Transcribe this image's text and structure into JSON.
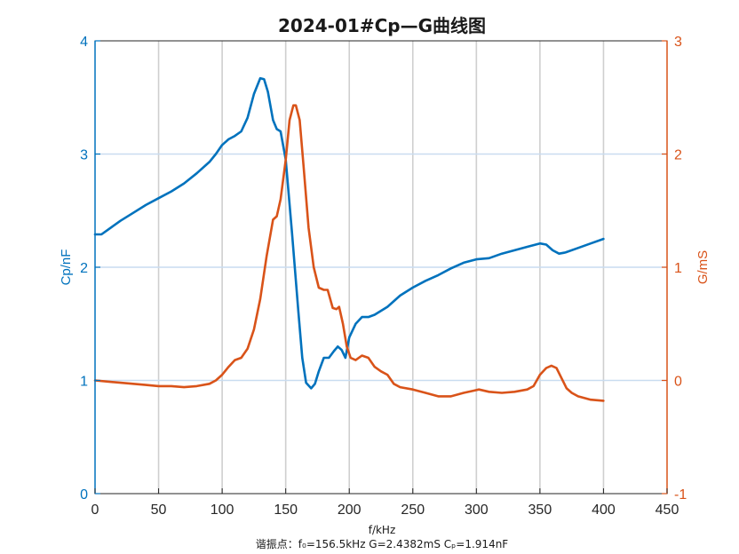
{
  "colors": {
    "left": "#0072BD",
    "right": "#D95319",
    "grid": "#c8c8c8",
    "axis": "#262626"
  },
  "chart_data": {
    "type": "line",
    "title": "2024-01#Cp—G曲线图",
    "xlabel": "f/kHz",
    "ylabel_left": "Cp/nF",
    "ylabel_right": "G/mS",
    "xlim": [
      0,
      450
    ],
    "ylim_left": [
      0,
      4
    ],
    "ylim_right": [
      -1,
      3
    ],
    "xticks": [
      0,
      50,
      100,
      150,
      200,
      250,
      300,
      350,
      400,
      450
    ],
    "yticks_left": [
      0,
      1,
      2,
      3,
      4
    ],
    "yticks_right": [
      -1,
      0,
      1,
      2,
      3
    ],
    "grid": true,
    "series": [
      {
        "axis": "left",
        "points": [
          [
            0,
            2.29
          ],
          [
            5,
            2.29
          ],
          [
            10,
            2.33
          ],
          [
            20,
            2.41
          ],
          [
            30,
            2.48
          ],
          [
            40,
            2.55
          ],
          [
            50,
            2.61
          ],
          [
            60,
            2.67
          ],
          [
            70,
            2.74
          ],
          [
            80,
            2.83
          ],
          [
            90,
            2.93
          ],
          [
            95,
            3.0
          ],
          [
            100,
            3.08
          ],
          [
            105,
            3.13
          ],
          [
            110,
            3.16
          ],
          [
            115,
            3.2
          ],
          [
            120,
            3.32
          ],
          [
            125,
            3.53
          ],
          [
            130,
            3.67
          ],
          [
            133,
            3.66
          ],
          [
            136,
            3.55
          ],
          [
            140,
            3.3
          ],
          [
            143,
            3.22
          ],
          [
            146,
            3.2
          ],
          [
            150,
            2.95
          ],
          [
            155,
            2.3
          ],
          [
            160,
            1.6
          ],
          [
            163,
            1.2
          ],
          [
            166,
            0.98
          ],
          [
            170,
            0.93
          ],
          [
            173,
            0.97
          ],
          [
            176,
            1.08
          ],
          [
            180,
            1.2
          ],
          [
            184,
            1.2
          ],
          [
            188,
            1.26
          ],
          [
            191,
            1.3
          ],
          [
            194,
            1.27
          ],
          [
            197,
            1.2
          ],
          [
            200,
            1.38
          ],
          [
            205,
            1.5
          ],
          [
            210,
            1.56
          ],
          [
            215,
            1.56
          ],
          [
            220,
            1.58
          ],
          [
            230,
            1.65
          ],
          [
            240,
            1.75
          ],
          [
            250,
            1.82
          ],
          [
            260,
            1.88
          ],
          [
            270,
            1.93
          ],
          [
            280,
            1.99
          ],
          [
            290,
            2.04
          ],
          [
            300,
            2.07
          ],
          [
            310,
            2.08
          ],
          [
            320,
            2.12
          ],
          [
            330,
            2.15
          ],
          [
            340,
            2.18
          ],
          [
            350,
            2.21
          ],
          [
            355,
            2.2
          ],
          [
            360,
            2.15
          ],
          [
            365,
            2.12
          ],
          [
            370,
            2.13
          ],
          [
            380,
            2.17
          ],
          [
            390,
            2.21
          ],
          [
            400,
            2.25
          ]
        ]
      },
      {
        "axis": "right",
        "points": [
          [
            0,
            0.0
          ],
          [
            10,
            -0.01
          ],
          [
            20,
            -0.02
          ],
          [
            30,
            -0.03
          ],
          [
            40,
            -0.04
          ],
          [
            50,
            -0.05
          ],
          [
            60,
            -0.05
          ],
          [
            70,
            -0.06
          ],
          [
            80,
            -0.05
          ],
          [
            90,
            -0.03
          ],
          [
            95,
            0.0
          ],
          [
            100,
            0.05
          ],
          [
            105,
            0.12
          ],
          [
            110,
            0.18
          ],
          [
            115,
            0.2
          ],
          [
            120,
            0.28
          ],
          [
            125,
            0.45
          ],
          [
            130,
            0.72
          ],
          [
            135,
            1.1
          ],
          [
            140,
            1.42
          ],
          [
            143,
            1.45
          ],
          [
            146,
            1.6
          ],
          [
            150,
            1.95
          ],
          [
            153,
            2.3
          ],
          [
            156,
            2.43
          ],
          [
            158,
            2.43
          ],
          [
            161,
            2.3
          ],
          [
            164,
            1.9
          ],
          [
            168,
            1.35
          ],
          [
            172,
            1.0
          ],
          [
            176,
            0.82
          ],
          [
            180,
            0.8
          ],
          [
            183,
            0.8
          ],
          [
            187,
            0.64
          ],
          [
            190,
            0.63
          ],
          [
            192,
            0.65
          ],
          [
            195,
            0.5
          ],
          [
            198,
            0.3
          ],
          [
            201,
            0.2
          ],
          [
            205,
            0.18
          ],
          [
            210,
            0.22
          ],
          [
            215,
            0.2
          ],
          [
            220,
            0.12
          ],
          [
            225,
            0.08
          ],
          [
            230,
            0.05
          ],
          [
            235,
            -0.03
          ],
          [
            240,
            -0.06
          ],
          [
            250,
            -0.08
          ],
          [
            260,
            -0.11
          ],
          [
            270,
            -0.14
          ],
          [
            280,
            -0.14
          ],
          [
            290,
            -0.11
          ],
          [
            298,
            -0.09
          ],
          [
            302,
            -0.08
          ],
          [
            310,
            -0.1
          ],
          [
            320,
            -0.11
          ],
          [
            330,
            -0.1
          ],
          [
            340,
            -0.08
          ],
          [
            345,
            -0.05
          ],
          [
            350,
            0.05
          ],
          [
            355,
            0.11
          ],
          [
            359,
            0.13
          ],
          [
            363,
            0.11
          ],
          [
            367,
            0.02
          ],
          [
            371,
            -0.07
          ],
          [
            375,
            -0.11
          ],
          [
            380,
            -0.14
          ],
          [
            390,
            -0.17
          ],
          [
            400,
            -0.18
          ]
        ]
      }
    ],
    "annotations": {
      "footer": "谐振点：f₀=156.5kHz  G=2.4382mS  Cₚ=1.914nF"
    }
  }
}
